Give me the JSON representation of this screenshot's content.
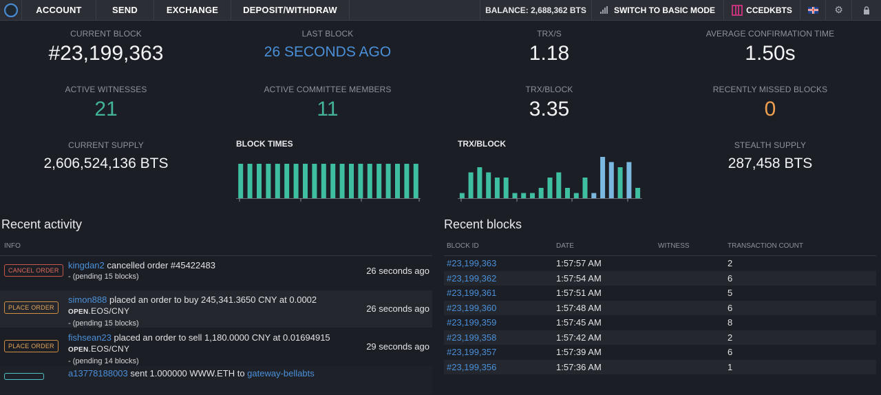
{
  "nav": {
    "account": "ACCOUNT",
    "send": "SEND",
    "exchange": "EXCHANGE",
    "deposit": "DEPOSIT/WITHDRAW",
    "balance": "BALANCE: 2,688,362 BTS",
    "basic_mode": "SWITCH TO BASIC MODE",
    "account_name": "CCEDKBTS",
    "icons": {
      "logo": "logo-icon",
      "chart": "bar-chart-icon",
      "identicon": "identicon-icon",
      "flag": "uk-flag-icon",
      "settings": "gear-icon",
      "lock": "lock-icon"
    }
  },
  "stats": {
    "current_block": {
      "label": "CURRENT BLOCK",
      "value": "#23,199,363"
    },
    "last_block": {
      "label": "LAST BLOCK",
      "value": "26 SECONDS AGO"
    },
    "trx_s": {
      "label": "TRX/S",
      "value": "1.18"
    },
    "avg_conf": {
      "label": "AVERAGE CONFIRMATION TIME",
      "value": "1.50s"
    },
    "active_witnesses": {
      "label": "ACTIVE WITNESSES",
      "value": "21"
    },
    "active_committee": {
      "label": "ACTIVE COMMITTEE MEMBERS",
      "value": "11"
    },
    "trx_block": {
      "label": "TRX/BLOCK",
      "value": "3.35"
    },
    "missed_blocks": {
      "label": "RECENTLY MISSED BLOCKS",
      "value": "0"
    },
    "current_supply": {
      "label": "CURRENT SUPPLY",
      "value": "2,606,524,136 BTS"
    },
    "stealth_supply": {
      "label": "STEALTH SUPPLY",
      "value": "287,458 BTS"
    }
  },
  "colors": {
    "blue": "#4a90d9",
    "green": "#41b49a",
    "orange": "#f0a050",
    "bar_green": "#3fbfa2",
    "bar_blue": "#7ab8e0",
    "background": "#1c1e25"
  },
  "chart_data": [
    {
      "type": "bar",
      "title": "BLOCK TIMES",
      "values": [
        3,
        3,
        3,
        3,
        3,
        3,
        3,
        3,
        3,
        3,
        3,
        3,
        3,
        3,
        3,
        3,
        3,
        3,
        3,
        3
      ],
      "ylim": [
        0,
        3
      ],
      "grid": false
    },
    {
      "type": "bar",
      "title": "TRX/BLOCK",
      "series": [
        {
          "values": [
            1,
            5,
            6,
            5,
            4,
            4,
            1,
            1,
            1,
            2,
            4,
            5,
            2,
            1,
            4,
            1,
            8,
            7,
            6,
            7,
            2
          ],
          "highlight": [
            false,
            false,
            false,
            false,
            false,
            false,
            false,
            false,
            false,
            false,
            false,
            false,
            false,
            false,
            false,
            true,
            true,
            true,
            false,
            true,
            false
          ]
        }
      ],
      "ylim": [
        0,
        8
      ],
      "grid": false
    }
  ],
  "activity": {
    "title": "Recent activity",
    "header": "INFO",
    "rows": [
      {
        "badge": "CANCEL ORDER",
        "user": "kingdan2",
        "text": " cancelled order #45422483",
        "asset_prefix": "",
        "asset": "",
        "pending": "- (pending 15 blocks)",
        "time": "26 seconds ago"
      },
      {
        "badge": "PLACE ORDER",
        "user": "simon888",
        "text": " placed an order to buy 245,341.3650 CNY at 0.0002",
        "asset_prefix": "OPEN",
        "asset": ".EOS/CNY",
        "pending": "- (pending 15 blocks)",
        "time": "26 seconds ago"
      },
      {
        "badge": "PLACE ORDER",
        "user": "fishsean23",
        "text": " placed an order to sell 1,180.0000 CNY at 0.01694915",
        "asset_prefix": "OPEN",
        "asset": ".EOS/CNY",
        "pending": "- (pending 14 blocks)",
        "time": "29 seconds ago"
      }
    ],
    "partial_row": {
      "user": "a13778188003",
      "text": " sent 1.000000 WWW.ETH to ",
      "to": "gateway-bellabts"
    }
  },
  "blocks": {
    "title": "Recent blocks",
    "headers": [
      "BLOCK ID",
      "DATE",
      "WITNESS",
      "TRANSACTION COUNT"
    ],
    "rows": [
      {
        "id": "#23,199,363",
        "date": "1:57:57 AM",
        "witness": "",
        "count": "2"
      },
      {
        "id": "#23,199,362",
        "date": "1:57:54 AM",
        "witness": "",
        "count": "6"
      },
      {
        "id": "#23,199,361",
        "date": "1:57:51 AM",
        "witness": "",
        "count": "5"
      },
      {
        "id": "#23,199,360",
        "date": "1:57:48 AM",
        "witness": "",
        "count": "6"
      },
      {
        "id": "#23,199,359",
        "date": "1:57:45 AM",
        "witness": "",
        "count": "8"
      },
      {
        "id": "#23,199,358",
        "date": "1:57:42 AM",
        "witness": "",
        "count": "2"
      },
      {
        "id": "#23,199,357",
        "date": "1:57:39 AM",
        "witness": "",
        "count": "6"
      },
      {
        "id": "#23,199,356",
        "date": "1:57:36 AM",
        "witness": "",
        "count": "1"
      }
    ]
  }
}
